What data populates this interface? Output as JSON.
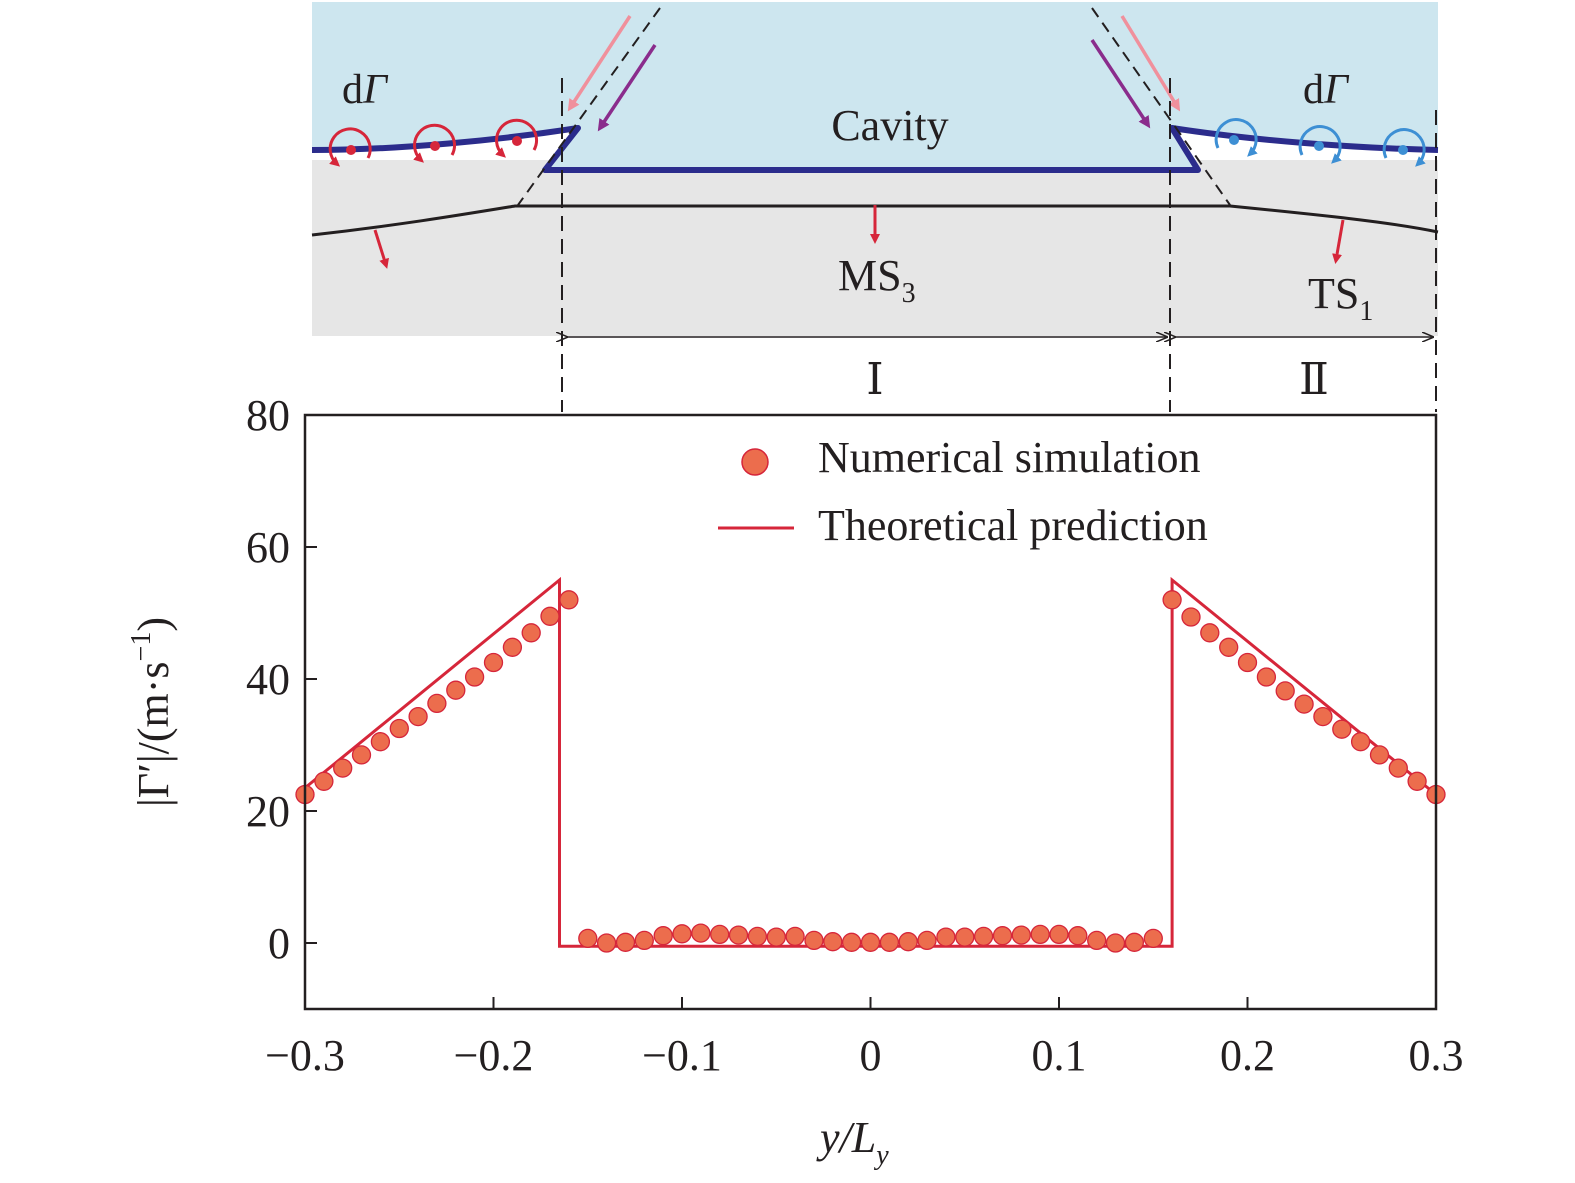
{
  "schematic": {
    "cavity_label": "Cavity",
    "dgamma_left": {
      "prefix": "d",
      "symbol": "Γ"
    },
    "dgamma_right": {
      "prefix": "d",
      "symbol": "Γ"
    },
    "shock_mid": {
      "base": "MS",
      "sub": "3"
    },
    "shock_right": {
      "base": "TS",
      "sub": "1"
    },
    "region_1": "Ⅰ",
    "region_2": "Ⅱ",
    "colors": {
      "cavity_fill": "#cde6ef",
      "gas_fill": "#e6e6e6",
      "interface": "#2b2c8c",
      "shock": "#231f20",
      "vortex_left": "#d6263a",
      "vortex_right": "#3d8fd4",
      "arrow_pink": "#f0909c",
      "arrow_purple": "#8a2c8c"
    }
  },
  "chart_data": {
    "type": "scatter",
    "xlim": [
      -0.3,
      0.3
    ],
    "ylim": [
      -10,
      80
    ],
    "xticks": [
      -0.3,
      -0.2,
      -0.1,
      0,
      0.1,
      0.2,
      0.3
    ],
    "xtick_labels": [
      "−0.3",
      "−0.2",
      "−0.1",
      "0",
      "0.1",
      "0.2",
      "0.3"
    ],
    "yticks": [
      0,
      20,
      40,
      60,
      80
    ],
    "ytick_labels": [
      "0",
      "20",
      "40",
      "60",
      "80"
    ],
    "xlabel": {
      "main": "y/L",
      "sub": "y"
    },
    "ylabel": {
      "main": "|Γ′|/(m·s",
      "sup": "−1",
      "end": ")"
    },
    "legend_position": "top-right",
    "series": [
      {
        "name": "Numerical simulation",
        "kind": "markers",
        "color": "#ec6d4d",
        "edge_color": "#d6263a",
        "x": [
          -0.3,
          -0.29,
          -0.28,
          -0.27,
          -0.26,
          -0.25,
          -0.24,
          -0.23,
          -0.22,
          -0.21,
          -0.2,
          -0.19,
          -0.18,
          -0.17,
          -0.16,
          -0.15,
          -0.14,
          -0.13,
          -0.12,
          -0.11,
          -0.1,
          -0.09,
          -0.08,
          -0.07,
          -0.06,
          -0.05,
          -0.04,
          -0.03,
          -0.02,
          -0.01,
          0,
          0.01,
          0.02,
          0.03,
          0.04,
          0.05,
          0.06,
          0.07,
          0.08,
          0.09,
          0.1,
          0.11,
          0.12,
          0.13,
          0.14,
          0.15,
          0.16,
          0.17,
          0.18,
          0.19,
          0.2,
          0.21,
          0.22,
          0.23,
          0.24,
          0.25,
          0.26,
          0.27,
          0.28,
          0.29,
          0.3
        ],
        "y": [
          22.5,
          24.5,
          26.5,
          28.5,
          30.5,
          32.5,
          34.3,
          36.3,
          38.3,
          40.3,
          42.5,
          44.8,
          47.0,
          49.5,
          52.0,
          0.7,
          0.0,
          0.1,
          0.4,
          1.1,
          1.4,
          1.5,
          1.3,
          1.2,
          1.0,
          0.9,
          1.0,
          0.4,
          0.2,
          0.1,
          0.1,
          0.1,
          0.2,
          0.4,
          0.9,
          0.9,
          1.0,
          1.1,
          1.2,
          1.3,
          1.3,
          1.1,
          0.4,
          0.0,
          0.1,
          0.7,
          52.0,
          49.4,
          47.0,
          44.8,
          42.5,
          40.3,
          38.2,
          36.2,
          34.3,
          32.4,
          30.5,
          28.5,
          26.5,
          24.5,
          22.5
        ]
      },
      {
        "name": "Theoretical prediction",
        "kind": "line",
        "color": "#d6263a",
        "x": [
          -0.3,
          -0.165,
          -0.165,
          0.16,
          0.16,
          0.3
        ],
        "y": [
          23.5,
          55.0,
          -0.5,
          -0.5,
          55.0,
          22.5
        ]
      }
    ]
  }
}
